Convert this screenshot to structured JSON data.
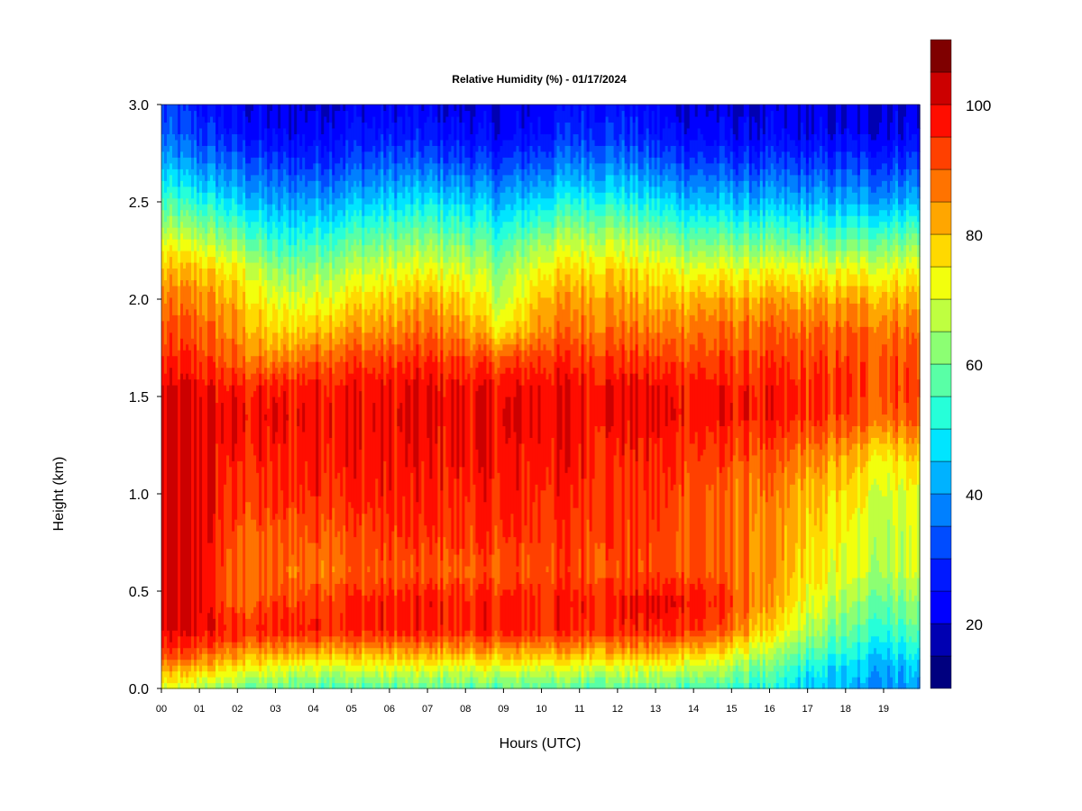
{
  "chart_data": {
    "type": "heatmap",
    "title": "Relative Humidity (%) - 01/17/2024",
    "xlabel": "Hours (UTC)",
    "ylabel": "Height (km)",
    "x_tick_labels": [
      "00",
      "01",
      "02",
      "03",
      "04",
      "05",
      "06",
      "07",
      "08",
      "09",
      "10",
      "11",
      "12",
      "13",
      "14",
      "15",
      "16",
      "17",
      "18",
      "19"
    ],
    "y_tick_labels": [
      "0.0",
      "0.5",
      "1.0",
      "1.5",
      "2.0",
      "2.5",
      "3.0"
    ],
    "xlim": [
      0,
      19.95
    ],
    "ylim": [
      0,
      3.0
    ],
    "colorbar": {
      "label_values": [
        "20",
        "40",
        "60",
        "80",
        "100"
      ],
      "min": 10,
      "max": 100,
      "step": 5,
      "colors": [
        "#00007F",
        "#0000B2",
        "#0000FF",
        "#0019FF",
        "#004CFF",
        "#0080FF",
        "#00B2FF",
        "#00E5FF",
        "#26FFD9",
        "#59FFA6",
        "#8CFF73",
        "#BFFF40",
        "#F2FF0D",
        "#FFD900",
        "#FFA600",
        "#FF7300",
        "#FF4000",
        "#FF0D00",
        "#CC0000",
        "#7F0000"
      ]
    },
    "z_grid": {
      "units": "%",
      "x_hours": [
        0,
        1,
        2,
        3,
        4,
        5,
        6,
        7,
        8,
        9,
        10,
        11,
        12,
        13,
        14,
        15,
        16,
        17,
        18,
        19,
        19.9
      ],
      "y_km": [
        0,
        0.1,
        0.2,
        0.3,
        0.45,
        0.6,
        0.8,
        1.0,
        1.2,
        1.4,
        1.55,
        1.7,
        1.85,
        2.0,
        2.15,
        2.3,
        2.5,
        2.7,
        2.85,
        3.0
      ],
      "values": [
        [
          68,
          66,
          60,
          58,
          57,
          57,
          57,
          57,
          57,
          57,
          57,
          57,
          57,
          57,
          56,
          54,
          50,
          45,
          42,
          40,
          42
        ],
        [
          82,
          80,
          74,
          70,
          70,
          70,
          70,
          70,
          70,
          70,
          70,
          70,
          70,
          70,
          68,
          63,
          58,
          50,
          45,
          42,
          45
        ],
        [
          93,
          92,
          86,
          84,
          85,
          84,
          84,
          84,
          84,
          84,
          84,
          84,
          84,
          84,
          82,
          76,
          66,
          58,
          52,
          48,
          52
        ],
        [
          99,
          99,
          96,
          96,
          97,
          96,
          96,
          96,
          96,
          96,
          96,
          96,
          96,
          96,
          95,
          88,
          76,
          66,
          58,
          54,
          58
        ],
        [
          100,
          100,
          88,
          92,
          94,
          96,
          96,
          97,
          96,
          96,
          96,
          97,
          97,
          99,
          99,
          92,
          82,
          72,
          64,
          60,
          64
        ],
        [
          100,
          100,
          88,
          88,
          88,
          90,
          90,
          90,
          90,
          90,
          92,
          92,
          92,
          92,
          92,
          88,
          84,
          76,
          70,
          66,
          70
        ],
        [
          100,
          100,
          90,
          90,
          92,
          92,
          94,
          94,
          94,
          94,
          94,
          94,
          94,
          92,
          92,
          88,
          84,
          78,
          72,
          68,
          70
        ],
        [
          100,
          100,
          94,
          94,
          96,
          96,
          96,
          96,
          96,
          96,
          96,
          96,
          94,
          94,
          92,
          88,
          86,
          80,
          76,
          70,
          72
        ],
        [
          100,
          100,
          96,
          96,
          98,
          98,
          98,
          98,
          98,
          98,
          98,
          98,
          96,
          96,
          94,
          92,
          90,
          86,
          82,
          76,
          80
        ],
        [
          100,
          100,
          98,
          98,
          99,
          99,
          99,
          99,
          99,
          99,
          99,
          99,
          99,
          99,
          98,
          97,
          96,
          94,
          92,
          90,
          92
        ],
        [
          99,
          99,
          96,
          96,
          98,
          98,
          98,
          99,
          98,
          98,
          99,
          99,
          99,
          98,
          98,
          96,
          96,
          94,
          93,
          92,
          94
        ],
        [
          94,
          94,
          88,
          84,
          90,
          92,
          92,
          94,
          92,
          90,
          94,
          94,
          94,
          92,
          92,
          92,
          92,
          92,
          92,
          92,
          92
        ],
        [
          90,
          90,
          84,
          76,
          80,
          84,
          84,
          88,
          84,
          74,
          86,
          88,
          88,
          86,
          88,
          88,
          88,
          88,
          88,
          88,
          88
        ],
        [
          86,
          86,
          80,
          70,
          72,
          76,
          78,
          82,
          78,
          66,
          82,
          84,
          84,
          80,
          82,
          82,
          82,
          82,
          82,
          82,
          82
        ],
        [
          80,
          80,
          74,
          62,
          64,
          68,
          70,
          72,
          70,
          62,
          74,
          78,
          78,
          74,
          72,
          72,
          72,
          72,
          72,
          72,
          74
        ],
        [
          70,
          68,
          62,
          52,
          54,
          58,
          60,
          62,
          60,
          54,
          64,
          68,
          68,
          64,
          60,
          60,
          58,
          58,
          58,
          60,
          62
        ],
        [
          55,
          52,
          46,
          40,
          42,
          44,
          46,
          48,
          46,
          42,
          48,
          52,
          52,
          48,
          44,
          44,
          42,
          42,
          42,
          42,
          44
        ],
        [
          42,
          38,
          34,
          30,
          30,
          32,
          34,
          34,
          32,
          30,
          34,
          38,
          38,
          34,
          32,
          30,
          30,
          30,
          30,
          30,
          32
        ],
        [
          34,
          30,
          26,
          22,
          24,
          26,
          26,
          26,
          24,
          22,
          26,
          30,
          30,
          26,
          24,
          22,
          22,
          22,
          22,
          22,
          24
        ],
        [
          30,
          26,
          22,
          20,
          20,
          22,
          22,
          22,
          20,
          20,
          22,
          26,
          26,
          22,
          20,
          20,
          20,
          20,
          20,
          20,
          22
        ]
      ]
    }
  }
}
